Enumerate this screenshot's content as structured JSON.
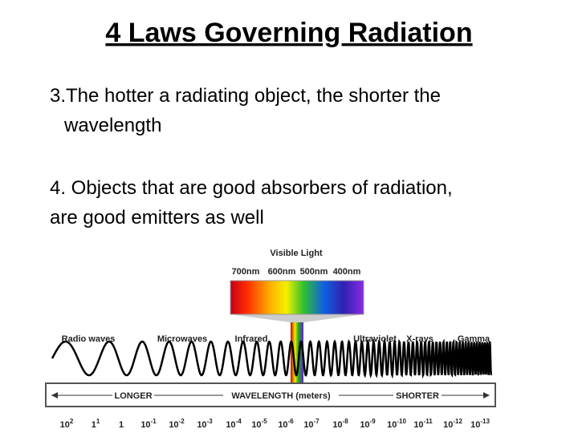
{
  "title": "4 Laws Governing Radiation",
  "points": [
    "3.The hotter a radiating object, the shorter the",
    "wavelength",
    "4. Objects that are good absorbers of radiation,",
    "are good emitters as well"
  ],
  "diagram": {
    "visible_label": "Visible Light",
    "visible_ticks": [
      "700nm",
      "600nm",
      "500nm",
      "400nm"
    ],
    "bands": [
      "Radio waves",
      "Microwaves",
      "Infrared",
      "Ultraviolet",
      "X-rays",
      "Gamma"
    ],
    "axis": {
      "left": "LONGER",
      "center": "WAVELENGTH (meters)",
      "right": "SHORTER"
    },
    "scale": [
      {
        "base": "10",
        "exp": "2"
      },
      {
        "base": "1",
        "exp": "1"
      },
      {
        "base": "1"
      },
      {
        "base": "10",
        "exp": "-1"
      },
      {
        "base": "10",
        "exp": "-2"
      },
      {
        "base": "10",
        "exp": "-3"
      },
      {
        "base": "10",
        "exp": "-4"
      },
      {
        "base": "10",
        "exp": "-5"
      },
      {
        "base": "10",
        "exp": "-6"
      },
      {
        "base": "10",
        "exp": "-7"
      },
      {
        "base": "10",
        "exp": "-8"
      },
      {
        "base": "10",
        "exp": "-9"
      },
      {
        "base": "10",
        "exp": "-10"
      },
      {
        "base": "10",
        "exp": "-11"
      },
      {
        "base": "10",
        "exp": "-12"
      },
      {
        "base": "10",
        "exp": "-13"
      }
    ]
  }
}
